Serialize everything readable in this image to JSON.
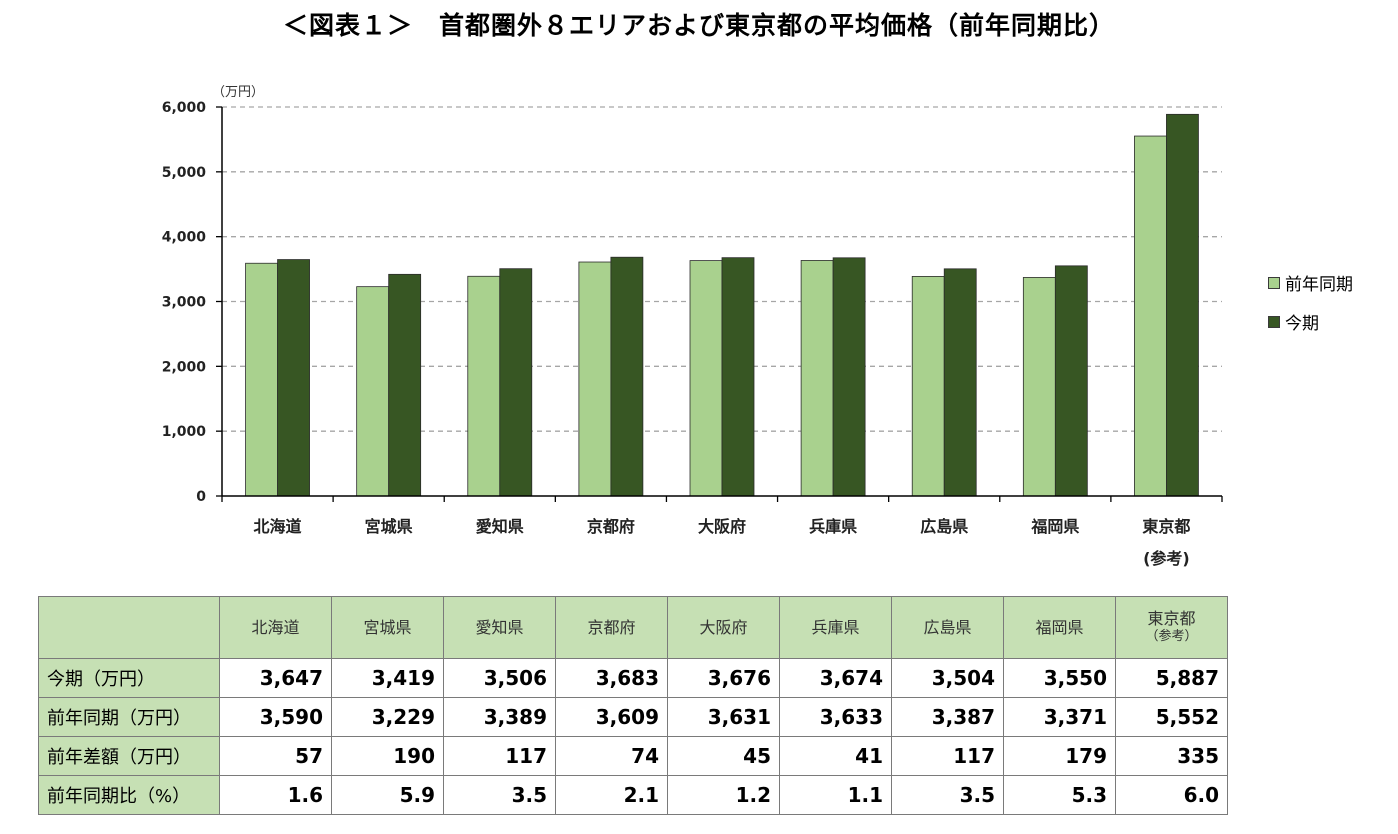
{
  "title": "＜図表１＞　首都圏外８エリアおよび東京都の平均価格（前年同期比）",
  "chart_data": {
    "type": "bar",
    "ylabel": "（万円）",
    "ylim": [
      0,
      6000
    ],
    "yticks": [
      0,
      1000,
      2000,
      3000,
      4000,
      5000,
      6000
    ],
    "ytick_labels": [
      "0",
      "1,000",
      "2,000",
      "3,000",
      "4,000",
      "5,000",
      "6,000"
    ],
    "grid": true,
    "legend_position": "right",
    "categories": [
      "北海道",
      "宮城県",
      "愛知県",
      "京都府",
      "大阪府",
      "兵庫県",
      "広島県",
      "福岡県",
      "東京都"
    ],
    "category_sublabels": [
      "",
      "",
      "",
      "",
      "",
      "",
      "",
      "",
      "(参考)"
    ],
    "series": [
      {
        "name": "前年同期",
        "color": "#a9d18e",
        "values": [
          3590,
          3229,
          3389,
          3609,
          3631,
          3633,
          3387,
          3371,
          5552
        ]
      },
      {
        "name": "今期",
        "color": "#375623",
        "values": [
          3647,
          3419,
          3506,
          3683,
          3676,
          3674,
          3504,
          3550,
          5887
        ]
      }
    ]
  },
  "table": {
    "headers": [
      "北海道",
      "宮城県",
      "愛知県",
      "京都府",
      "大阪府",
      "兵庫県",
      "広島県",
      "福岡県",
      "東京都"
    ],
    "header_sub": [
      "",
      "",
      "",
      "",
      "",
      "",
      "",
      "",
      "（参考）"
    ],
    "rows": [
      {
        "label": "今期（万円）",
        "values": [
          "3,647",
          "3,419",
          "3,506",
          "3,683",
          "3,676",
          "3,674",
          "3,504",
          "3,550",
          "5,887"
        ]
      },
      {
        "label": "前年同期（万円）",
        "values": [
          "3,590",
          "3,229",
          "3,389",
          "3,609",
          "3,631",
          "3,633",
          "3,387",
          "3,371",
          "5,552"
        ]
      },
      {
        "label": "前年差額（万円）",
        "values": [
          "57",
          "190",
          "117",
          "74",
          "45",
          "41",
          "117",
          "179",
          "335"
        ]
      },
      {
        "label": "前年同期比（%）",
        "values": [
          "1.6",
          "5.9",
          "3.5",
          "2.1",
          "1.2",
          "1.1",
          "3.5",
          "5.3",
          "6.0"
        ]
      }
    ]
  }
}
